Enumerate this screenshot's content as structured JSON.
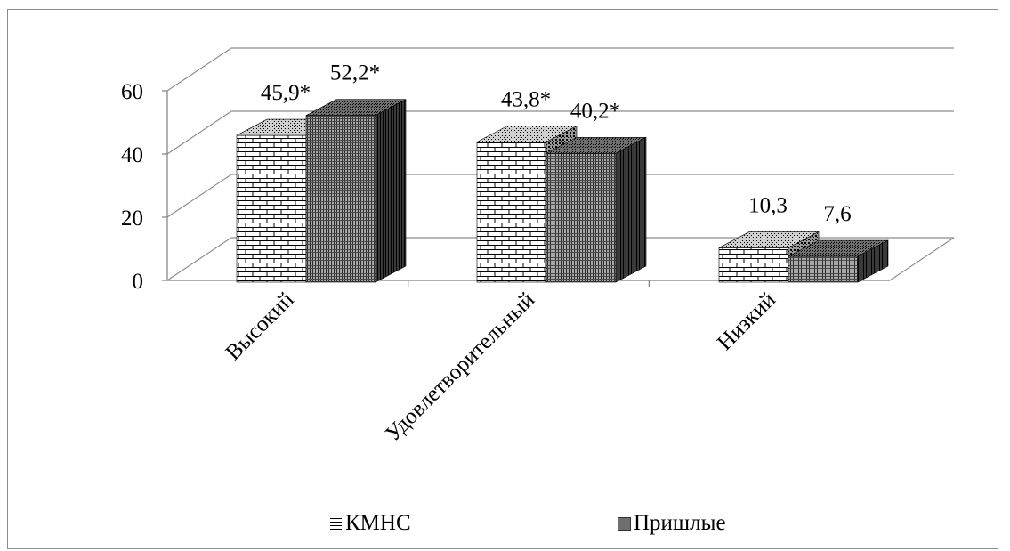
{
  "chart_data": {
    "type": "bar",
    "categories": [
      "Высокий",
      "Удовлетворительный",
      "Низкий"
    ],
    "series": [
      {
        "name": "КМНС",
        "values": [
          45.9,
          43.8,
          10.3
        ],
        "labels": [
          "45,9*",
          "43,8*",
          "10,3"
        ]
      },
      {
        "name": "Пришлые",
        "values": [
          52.2,
          40.2,
          7.6
        ],
        "labels": [
          "52,2*",
          "40,2*",
          "7,6"
        ]
      }
    ],
    "y_ticks": [
      "0",
      "20",
      "40",
      "60"
    ],
    "ylim": [
      0,
      60
    ],
    "grid": true,
    "legend_position": "bottom",
    "style": "3d-clustered-column",
    "colors": {
      "grid": "#8c8c8c",
      "axis": "#7f7f7f",
      "frame": "#8c8c8c"
    }
  }
}
